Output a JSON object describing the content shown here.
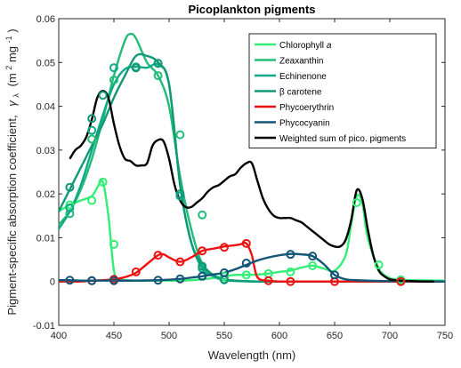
{
  "chart_data": {
    "type": "line",
    "title": "Picoplankton pigments",
    "xlabel": "Wavelength (nm)",
    "ylabel": "Pigment-specific absorption coefficient,  γλ (m² mg⁻¹)",
    "ylabel_parts": {
      "main": "Pigment-specific absorption coefficient,",
      "symbol": "γ",
      "subscript": "λ",
      "unit": "(m",
      "unit_exp1": "2",
      "unit_mid": " mg",
      "unit_exp2": "-1",
      "unit_end": ")"
    },
    "xlim": [
      400,
      750
    ],
    "ylim": [
      -0.01,
      0.06
    ],
    "xticks": [
      "400",
      "450",
      "500",
      "550",
      "600",
      "650",
      "700",
      "750"
    ],
    "yticks": [
      "-0.01",
      "0",
      "0.01",
      "0.02",
      "0.03",
      "0.04",
      "0.05",
      "0.06"
    ],
    "legend_position": "top-right",
    "series": [
      {
        "name": "Chlorophyll a",
        "name_main": "Chlorophyll ",
        "name_italic": "a",
        "color": "#33ee77",
        "x": [
          400,
          410,
          420,
          430,
          435,
          440,
          445,
          450,
          455,
          460,
          470,
          480,
          490,
          500,
          510,
          520,
          530,
          540,
          550,
          560,
          570,
          580,
          590,
          600,
          610,
          620,
          630,
          640,
          650,
          660,
          665,
          670,
          675,
          680,
          690,
          700,
          710,
          720,
          750
        ],
        "y": [
          0.016,
          0.0175,
          0.0185,
          0.0195,
          0.0215,
          0.0227,
          0.015,
          0.0025,
          0.0005,
          0.0003,
          0.0002,
          0.0002,
          0.0002,
          0.0002,
          0.0002,
          0.0003,
          0.0005,
          0.0008,
          0.0012,
          0.0015,
          0.0015,
          0.0016,
          0.0018,
          0.0022,
          0.0025,
          0.0032,
          0.0036,
          0.003,
          0.0025,
          0.006,
          0.013,
          0.0195,
          0.018,
          0.01,
          0.003,
          0.0008,
          0.0004,
          0.0003,
          0.0002
        ],
        "markers": [
          [
            410,
            0.0175
          ],
          [
            430,
            0.0185
          ],
          [
            440,
            0.0227
          ],
          [
            450,
            0.0085
          ],
          [
            550,
            0.0012
          ],
          [
            570,
            0.0015
          ],
          [
            590,
            0.0018
          ],
          [
            610,
            0.0022
          ],
          [
            630,
            0.0036
          ],
          [
            670,
            0.018
          ],
          [
            690,
            0.0038
          ],
          [
            710,
            0.0004
          ]
        ]
      },
      {
        "name": "Zeaxanthin",
        "color": "#22bb77",
        "x": [
          400,
          410,
          420,
          430,
          440,
          450,
          460,
          465,
          470,
          480,
          490,
          500,
          510,
          520,
          530,
          540,
          550,
          560,
          580,
          600,
          650,
          700,
          750
        ],
        "y": [
          0.013,
          0.016,
          0.021,
          0.028,
          0.037,
          0.047,
          0.055,
          0.0565,
          0.0555,
          0.05,
          0.047,
          0.04,
          0.024,
          0.012,
          0.004,
          0.0012,
          0.0003,
          0.0001,
          0.0,
          0.0,
          0.0,
          0.0,
          0.0
        ],
        "markers": [
          [
            410,
            0.0155
          ],
          [
            430,
            0.0325
          ],
          [
            450,
            0.046
          ],
          [
            470,
            0.049
          ],
          [
            490,
            0.047
          ],
          [
            510,
            0.0335
          ],
          [
            530,
            0.0152
          ],
          [
            550,
            0.0005
          ]
        ]
      },
      {
        "name": "Echinenone",
        "color": "#11aa88",
        "x": [
          400,
          410,
          420,
          430,
          440,
          450,
          460,
          470,
          480,
          490,
          500,
          510,
          520,
          530,
          540,
          550,
          560,
          580,
          600,
          650,
          700,
          750
        ],
        "y": [
          0.012,
          0.016,
          0.022,
          0.03,
          0.038,
          0.045,
          0.0485,
          0.049,
          0.0488,
          0.0495,
          0.045,
          0.022,
          0.009,
          0.003,
          0.0012,
          0.0005,
          0.0002,
          0.0,
          0.0,
          0.0,
          0.0,
          0.0
        ],
        "markers": [
          [
            410,
            0.0168
          ],
          [
            430,
            0.0345
          ],
          [
            450,
            0.0488
          ],
          [
            470,
            0.0488
          ],
          [
            490,
            0.0498
          ],
          [
            510,
            0.0195
          ],
          [
            530,
            0.003
          ],
          [
            550,
            0.0004
          ]
        ]
      },
      {
        "name": "β carotene",
        "color": "#119977",
        "x": [
          400,
          410,
          420,
          430,
          440,
          450,
          460,
          470,
          480,
          490,
          500,
          510,
          520,
          530,
          540,
          550,
          560,
          580,
          600,
          650,
          700,
          750
        ],
        "y": [
          0.016,
          0.021,
          0.026,
          0.031,
          0.036,
          0.042,
          0.047,
          0.0515,
          0.0515,
          0.05,
          0.045,
          0.022,
          0.009,
          0.004,
          0.0015,
          0.0005,
          0.0002,
          0.0,
          0.0,
          0.0,
          0.0,
          0.0
        ],
        "markers": [
          [
            410,
            0.0215
          ],
          [
            430,
            0.0372
          ],
          [
            440,
            0.0425
          ],
          [
            470,
            0.0488
          ],
          [
            490,
            0.0498
          ],
          [
            510,
            0.02
          ],
          [
            530,
            0.0035
          ],
          [
            550,
            0.0004
          ]
        ]
      },
      {
        "name": "Phycoerythrin",
        "color": "#ee1111",
        "x": [
          400,
          410,
          420,
          430,
          440,
          450,
          460,
          470,
          480,
          490,
          495,
          500,
          510,
          520,
          530,
          540,
          550,
          560,
          565,
          570,
          575,
          580,
          590,
          600,
          620,
          650,
          700,
          750
        ],
        "y": [
          0.0,
          0.0,
          0.0,
          0.0002,
          0.0003,
          0.0005,
          0.001,
          0.002,
          0.004,
          0.006,
          0.0062,
          0.0055,
          0.0045,
          0.0055,
          0.007,
          0.0075,
          0.008,
          0.0083,
          0.0085,
          0.0087,
          0.006,
          0.001,
          0.0002,
          0.0,
          0.0,
          0.0,
          0.0,
          0.0
        ],
        "markers": [
          [
            430,
            0.0002
          ],
          [
            450,
            0.0005
          ],
          [
            470,
            0.0022
          ],
          [
            490,
            0.006
          ],
          [
            510,
            0.0045
          ],
          [
            530,
            0.007
          ],
          [
            550,
            0.0078
          ],
          [
            570,
            0.0087
          ],
          [
            590,
            0.0002
          ],
          [
            610,
            0.0
          ],
          [
            650,
            0.0
          ],
          [
            710,
            0.0
          ]
        ]
      },
      {
        "name": "Phycocyanin",
        "color": "#115577",
        "x": [
          400,
          410,
          420,
          430,
          440,
          450,
          470,
          490,
          510,
          520,
          530,
          540,
          550,
          560,
          570,
          580,
          590,
          600,
          610,
          620,
          630,
          640,
          650,
          660,
          670,
          680,
          700,
          750
        ],
        "y": [
          0.0003,
          0.0003,
          0.0002,
          0.0002,
          0.0002,
          0.0002,
          0.0002,
          0.0003,
          0.0006,
          0.0009,
          0.0012,
          0.0016,
          0.002,
          0.0028,
          0.0038,
          0.0048,
          0.0055,
          0.006,
          0.0063,
          0.0062,
          0.0058,
          0.004,
          0.0015,
          0.0005,
          0.0003,
          0.0002,
          0.0001,
          0.0
        ],
        "markers": [
          [
            410,
            0.0003
          ],
          [
            430,
            0.0002
          ],
          [
            450,
            0.0002
          ],
          [
            490,
            0.0003
          ],
          [
            510,
            0.0006
          ],
          [
            530,
            0.0012
          ],
          [
            550,
            0.002
          ],
          [
            570,
            0.0042
          ],
          [
            610,
            0.0062
          ],
          [
            630,
            0.0058
          ],
          [
            650,
            0.0015
          ]
        ]
      },
      {
        "name": "Weighted sum of pico. pigments",
        "color": "#000000",
        "x": [
          410,
          415,
          420,
          425,
          430,
          435,
          440,
          445,
          450,
          455,
          460,
          465,
          470,
          475,
          480,
          485,
          490,
          495,
          500,
          505,
          510,
          515,
          520,
          525,
          530,
          535,
          540,
          545,
          550,
          555,
          560,
          565,
          570,
          575,
          580,
          585,
          590,
          595,
          600,
          605,
          610,
          615,
          620,
          625,
          630,
          635,
          640,
          645,
          650,
          655,
          660,
          665,
          670,
          675,
          680,
          685,
          690,
          695,
          700,
          710,
          720,
          730,
          740
        ],
        "y": [
          0.028,
          0.03,
          0.031,
          0.033,
          0.037,
          0.042,
          0.0435,
          0.042,
          0.036,
          0.031,
          0.028,
          0.0275,
          0.0265,
          0.0265,
          0.027,
          0.031,
          0.0323,
          0.032,
          0.028,
          0.022,
          0.0185,
          0.017,
          0.017,
          0.018,
          0.019,
          0.0205,
          0.0215,
          0.022,
          0.023,
          0.024,
          0.0245,
          0.026,
          0.027,
          0.027,
          0.023,
          0.019,
          0.0165,
          0.015,
          0.0145,
          0.0145,
          0.0145,
          0.014,
          0.0135,
          0.0125,
          0.0115,
          0.0105,
          0.0095,
          0.0085,
          0.008,
          0.008,
          0.0095,
          0.014,
          0.0208,
          0.019,
          0.012,
          0.006,
          0.0025,
          0.0012,
          0.0005,
          0.0002,
          0.0001,
          0.0,
          0.0
        ]
      }
    ]
  }
}
